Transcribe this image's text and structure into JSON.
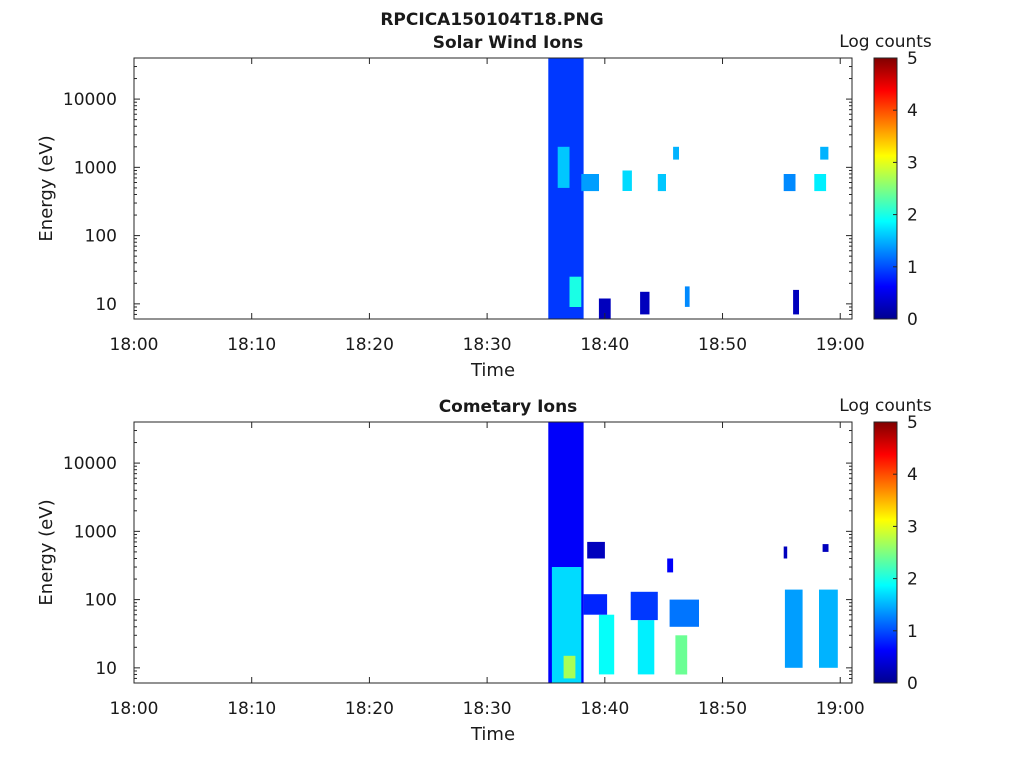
{
  "figure": {
    "title": "RPCICA150104T18.PNG"
  },
  "chart_data": [
    {
      "type": "heatmap",
      "title": "Solar Wind Ions",
      "xlabel": "Time",
      "ylabel": "Energy (eV)",
      "x_ticks": [
        "18:00",
        "18:10",
        "18:20",
        "18:30",
        "18:40",
        "18:50",
        "19:00"
      ],
      "x_range": [
        "18:00",
        "19:01"
      ],
      "y_scale": "log",
      "y_ticks": [
        10,
        100,
        1000,
        10000
      ],
      "y_range": [
        6,
        40000
      ],
      "colorbar": {
        "label": "Log counts",
        "ticks": [
          0,
          1,
          2,
          3,
          4,
          5
        ],
        "range": [
          0,
          5
        ],
        "colormap": "jet"
      },
      "regions": [
        {
          "t_start": "18:35.2",
          "t_end": "18:38.2",
          "e_low": 6,
          "e_high": 40000,
          "log_counts": 0.9,
          "note": "dense band"
        },
        {
          "t_start": "18:36.0",
          "t_end": "18:37.0",
          "e_low": 500,
          "e_high": 2000,
          "log_counts": 1.6
        },
        {
          "t_start": "18:37.0",
          "t_end": "18:38.0",
          "e_low": 9,
          "e_high": 25,
          "log_counts": 2.0
        },
        {
          "t_start": "18:38.0",
          "t_end": "18:39.5",
          "e_low": 450,
          "e_high": 800,
          "log_counts": 1.4
        },
        {
          "t_start": "18:41.5",
          "t_end": "18:42.3",
          "e_low": 450,
          "e_high": 900,
          "log_counts": 1.7
        },
        {
          "t_start": "18:44.5",
          "t_end": "18:45.2",
          "e_low": 450,
          "e_high": 800,
          "log_counts": 1.6
        },
        {
          "t_start": "18:45.8",
          "t_end": "18:46.3",
          "e_low": 1300,
          "e_high": 2000,
          "log_counts": 1.5
        },
        {
          "t_start": "18:55.2",
          "t_end": "18:56.2",
          "e_low": 450,
          "e_high": 800,
          "log_counts": 1.3
        },
        {
          "t_start": "18:57.8",
          "t_end": "18:58.8",
          "e_low": 450,
          "e_high": 800,
          "log_counts": 1.8
        },
        {
          "t_start": "18:58.3",
          "t_end": "18:59.0",
          "e_low": 1300,
          "e_high": 2000,
          "log_counts": 1.5
        },
        {
          "t_start": "18:46.8",
          "t_end": "18:47.2",
          "e_low": 9,
          "e_high": 18,
          "log_counts": 1.3
        },
        {
          "t_start": "18:39.5",
          "t_end": "18:40.5",
          "e_low": 6,
          "e_high": 12,
          "log_counts": 0.3
        },
        {
          "t_start": "18:43.0",
          "t_end": "18:43.8",
          "e_low": 7,
          "e_high": 15,
          "log_counts": 0.3
        },
        {
          "t_start": "18:56.0",
          "t_end": "18:56.5",
          "e_low": 7,
          "e_high": 16,
          "log_counts": 0.3
        }
      ]
    },
    {
      "type": "heatmap",
      "title": "Cometary Ions",
      "xlabel": "Time",
      "ylabel": "Energy (eV)",
      "x_ticks": [
        "18:00",
        "18:10",
        "18:20",
        "18:30",
        "18:40",
        "18:50",
        "19:00"
      ],
      "x_range": [
        "18:00",
        "19:01"
      ],
      "y_scale": "log",
      "y_ticks": [
        10,
        100,
        1000,
        10000
      ],
      "y_range": [
        6,
        40000
      ],
      "colorbar": {
        "label": "Log counts",
        "ticks": [
          0,
          1,
          2,
          3,
          4,
          5
        ],
        "range": [
          0,
          5
        ],
        "colormap": "jet"
      },
      "regions": [
        {
          "t_start": "18:35.2",
          "t_end": "18:38.2",
          "e_low": 6,
          "e_high": 40000,
          "log_counts": 0.6,
          "note": "dense band"
        },
        {
          "t_start": "18:35.5",
          "t_end": "18:38.0",
          "e_low": 6,
          "e_high": 300,
          "log_counts": 1.7
        },
        {
          "t_start": "18:36.5",
          "t_end": "18:37.5",
          "e_low": 7,
          "e_high": 15,
          "log_counts": 2.7
        },
        {
          "t_start": "18:39.5",
          "t_end": "18:40.8",
          "e_low": 8,
          "e_high": 60,
          "log_counts": 1.9
        },
        {
          "t_start": "18:38.2",
          "t_end": "18:40.2",
          "e_low": 60,
          "e_high": 120,
          "log_counts": 0.8
        },
        {
          "t_start": "18:42.8",
          "t_end": "18:44.2",
          "e_low": 8,
          "e_high": 50,
          "log_counts": 1.8
        },
        {
          "t_start": "18:42.2",
          "t_end": "18:44.5",
          "e_low": 50,
          "e_high": 130,
          "log_counts": 0.9
        },
        {
          "t_start": "18:46.0",
          "t_end": "18:47.0",
          "e_low": 8,
          "e_high": 30,
          "log_counts": 2.4
        },
        {
          "t_start": "18:45.5",
          "t_end": "18:48.0",
          "e_low": 40,
          "e_high": 100,
          "log_counts": 1.2
        },
        {
          "t_start": "18:55.3",
          "t_end": "18:56.8",
          "e_low": 10,
          "e_high": 140,
          "log_counts": 1.4
        },
        {
          "t_start": "18:58.2",
          "t_end": "18:59.8",
          "e_low": 10,
          "e_high": 140,
          "log_counts": 1.5
        },
        {
          "t_start": "18:45.3",
          "t_end": "18:45.8",
          "e_low": 250,
          "e_high": 400,
          "log_counts": 0.6
        },
        {
          "t_start": "18:38.5",
          "t_end": "18:40.0",
          "e_low": 400,
          "e_high": 700,
          "log_counts": 0.3
        },
        {
          "t_start": "18:55.2",
          "t_end": "18:55.5",
          "e_low": 400,
          "e_high": 600,
          "log_counts": 0.3
        },
        {
          "t_start": "18:58.5",
          "t_end": "18:59.0",
          "e_low": 500,
          "e_high": 650,
          "log_counts": 0.3
        }
      ]
    }
  ]
}
